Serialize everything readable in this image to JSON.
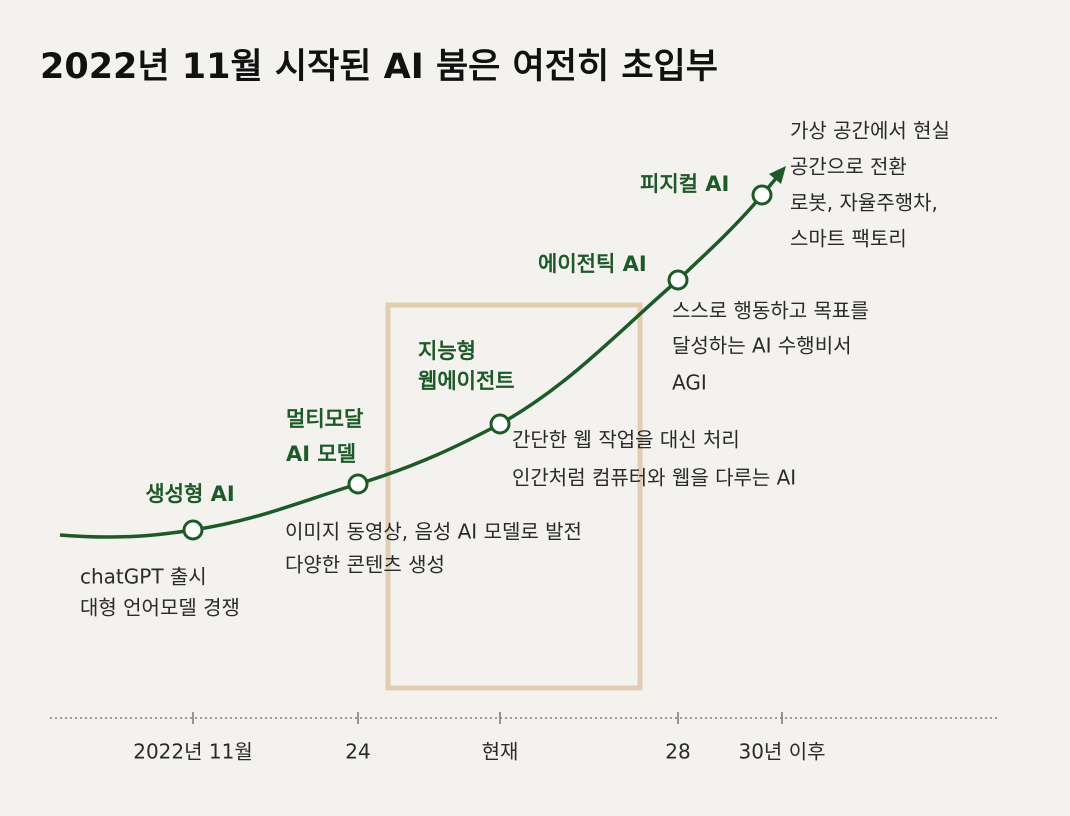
{
  "title": "2022년 11월 시작된 AI 붐은 여전히 초입부",
  "stages": [
    {
      "label": [
        "생성형 AI"
      ],
      "description": [
        "chatGPT 출시",
        "대형 언어모델 경쟁"
      ]
    },
    {
      "label": [
        "멀티모달",
        "AI 모델"
      ],
      "description": [
        "이미지 동영상, 음성 AI 모델로 발전",
        "다양한 콘텐츠 생성"
      ]
    },
    {
      "label": [
        "지능형",
        "웹에이전트"
      ],
      "description": [
        "간단한 웹 작업을 대신 처리",
        "인간처럼 컴퓨터와 웹을 다루는 AI"
      ]
    },
    {
      "label": [
        "에이전틱 AI"
      ],
      "description": [
        "스스로 행동하고 목표를",
        "달성하는 AI 수행비서",
        "AGI"
      ]
    },
    {
      "label": [
        "피지컬 AI"
      ],
      "description": [
        "가상 공간에서 현실",
        "공간으로 전환",
        "로봇, 자율주행차,",
        "스마트 팩토리"
      ]
    }
  ],
  "timeline": [
    "2022년 11월",
    "24",
    "현재",
    "28",
    "30년 이후"
  ]
}
